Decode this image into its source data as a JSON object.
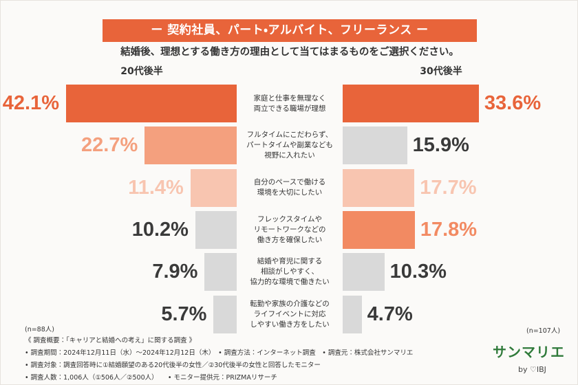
{
  "chart_data": {
    "type": "butterfly_bar",
    "title": "ー 契約社員、パート・アルバイト、フリーランス ー",
    "subtitle": "結婚後、理想とする働き方の理由として当てはまるものをご選択ください。",
    "categories": [
      "家庭と仕事を無理なく\n両立できる職場が理想",
      "フルタイムにこだわらず、\nパートタイムや副業なども\n視野に入れたい",
      "自分のペースで働ける\n環境を大切にしたい",
      "フレックスタイムや\nリモートワークなどの\n働き方を確保したい",
      "結婚や育児に関する\n相談がしやすく、\n協力的な環境で働きたい",
      "転勤や家族の介護などの\nライフイベントに対応\nしやすい働き方をしたい"
    ],
    "series": [
      {
        "name": "20代後半",
        "note": "(n=88人)",
        "values": [
          42.1,
          22.7,
          11.4,
          10.2,
          7.9,
          5.7
        ],
        "value_labels": [
          "42.1%",
          "22.7%",
          "11.4%",
          "10.2%",
          "7.9%",
          "5.7%"
        ],
        "colors": [
          "#e8643a",
          "#f4a07e",
          "#f8c5b0",
          "#d9d9d9",
          "#d9d9d9",
          "#d9d9d9"
        ]
      },
      {
        "name": "30代後半",
        "note": "(n=107人)",
        "values": [
          33.6,
          15.9,
          17.7,
          17.8,
          10.3,
          4.7
        ],
        "value_labels": [
          "33.6%",
          "15.9%",
          "17.7%",
          "17.8%",
          "10.3%",
          "4.7%"
        ],
        "colors": [
          "#e8643a",
          "#d9d9d9",
          "#f8c5b0",
          "#f28a62",
          "#d9d9d9",
          "#d9d9d9"
        ]
      }
    ]
  },
  "footer": [
    "《 調査概要：「キャリアと結婚への考え」に関する調査 》",
    "• 調査期間：2024年12月11日（水）〜2024年12月12日（木）　• 調査方法：インターネット調査　• 調査元：株式会社サンマリエ",
    "• 調査対象：調査回答時に①結婚願望のある20代後半の女性／②30代後半の女性と回答したモニター",
    "• 調査人数：1,006人（①506人／②500人）　　• モニター提供元：PRIZMAリサーチ"
  ],
  "logo": {
    "name": "サンマリエ",
    "by": "by ♡IBJ"
  }
}
